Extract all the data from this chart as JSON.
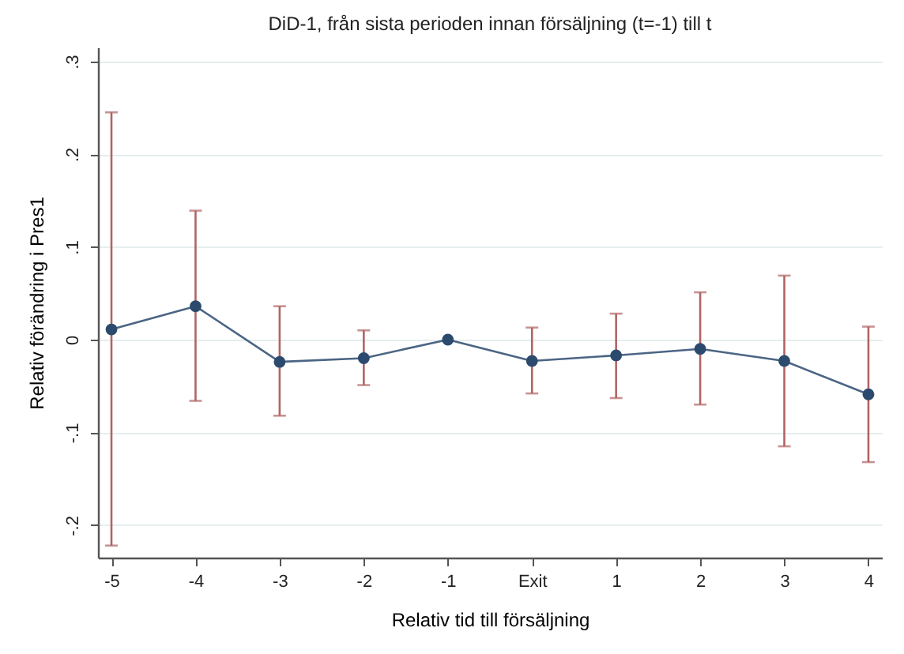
{
  "chart_data": {
    "type": "line",
    "title": "DiD-1, från sista perioden innan försäljning (t=-1) till t",
    "xlabel": "Relativ tid till försäljning",
    "ylabel": "Relativ förändring i Pres1",
    "categories": [
      "-5",
      "-4",
      "-3",
      "-2",
      "-1",
      "Exit",
      "1",
      "2",
      "3",
      "4"
    ],
    "series": [
      {
        "color": "#2c4a6e",
        "values": [
          0.011,
          0.036,
          -0.024,
          -0.02,
          0,
          -0.023,
          -0.017,
          -0.01,
          -0.023,
          -0.059
        ],
        "errors": [
          [
            -0.222,
            0.245
          ],
          [
            -0.066,
            0.139
          ],
          [
            -0.082,
            0.036
          ],
          [
            -0.049,
            0.01
          ],
          null,
          [
            -0.058,
            0.013
          ],
          [
            -0.063,
            0.028
          ],
          [
            -0.07,
            0.051
          ],
          [
            -0.115,
            0.069
          ],
          [
            -0.132,
            0.014
          ]
        ]
      }
    ],
    "ylim": [
      -0.235,
      0.315
    ],
    "yticks": [
      {
        "value": -0.2,
        "label": "-.2"
      },
      {
        "value": -0.1,
        "label": "-.1"
      },
      0,
      {
        "value": 0.1,
        "label": ".1"
      },
      {
        "value": 0.2,
        "label": ".2"
      },
      {
        "value": 0.3,
        "label": ".3"
      }
    ],
    "grid": "y",
    "marker": "circle",
    "line_style": "solid"
  }
}
